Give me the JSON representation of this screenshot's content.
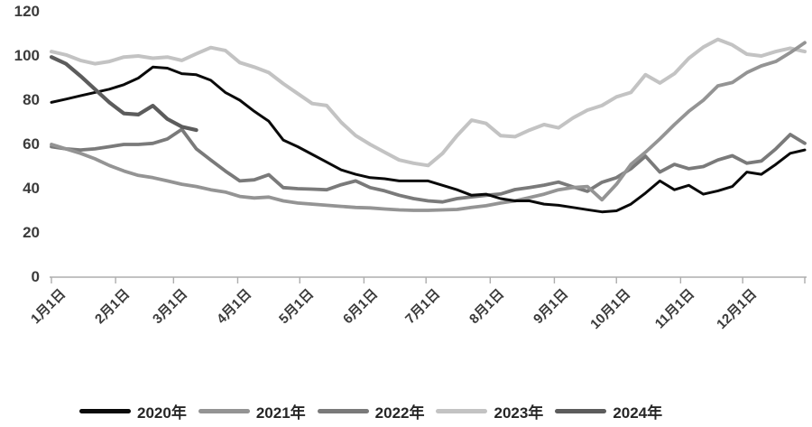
{
  "chart_data": {
    "type": "line",
    "title": "",
    "xlabel": "",
    "ylabel": "",
    "grid": false,
    "legend_position": "bottom",
    "x_axis": {
      "tick_labels": [
        "1月1日",
        "2月1日",
        "3月1日",
        "4月1日",
        "5月1日",
        "6月1日",
        "7月1日",
        "8月1日",
        "9月1日",
        "10月1日",
        "11月1日",
        "12月1日"
      ],
      "tick_days": [
        0,
        31,
        59,
        90,
        120,
        151,
        181,
        212,
        243,
        273,
        304,
        334
      ],
      "end_day": 364,
      "point_interval_days": 7
    },
    "y_axis": {
      "ticks": [
        0,
        20,
        40,
        60,
        80,
        100,
        120
      ],
      "min": 0,
      "max": 120
    },
    "series": [
      {
        "name": "2020年",
        "color": "#0a0a0a",
        "width": 3,
        "values": [
          79,
          80.5,
          82,
          83.5,
          85,
          87,
          90,
          95,
          94.5,
          92,
          91.5,
          89,
          83.5,
          80,
          75,
          70.5,
          62,
          59,
          55.5,
          52,
          48.5,
          46.5,
          45,
          44.5,
          43.5,
          43.5,
          43.5,
          41.5,
          39.5,
          37,
          37.5,
          35.5,
          34.5,
          34.5,
          33,
          32.5,
          31.5,
          30.5,
          29.5,
          30,
          33,
          38,
          43.5,
          39.5,
          41.5,
          37.5,
          39,
          41,
          47.5,
          46.5,
          51,
          56,
          57.5
        ]
      },
      {
        "name": "2021年",
        "color": "#949494",
        "width": 3.8,
        "values": [
          60,
          58,
          56,
          53.5,
          50.5,
          48,
          46,
          45,
          43.5,
          42,
          41,
          39.5,
          38.5,
          36.5,
          35.8,
          36.2,
          34.5,
          33.5,
          33,
          32.5,
          32,
          31.5,
          31.3,
          30.8,
          30.4,
          30.2,
          30.2,
          30.4,
          30.6,
          31.5,
          32.3,
          33.5,
          34.5,
          36,
          37.5,
          39.5,
          40.5,
          41,
          35,
          42,
          51,
          56.5,
          62.5,
          69,
          75,
          80,
          86.5,
          88,
          92.5,
          95.5,
          97.5,
          101.5,
          106
        ]
      },
      {
        "name": "2022年",
        "color": "#7a7a7a",
        "width": 3.8,
        "values": [
          59,
          58,
          57.5,
          58,
          59,
          60,
          60,
          60.5,
          62.5,
          66.8,
          58,
          53,
          48,
          43.5,
          44,
          46.3,
          40.5,
          40,
          39.8,
          39.5,
          41.8,
          43.5,
          40.5,
          39,
          37,
          35.5,
          34.5,
          34,
          35.5,
          36.3,
          37,
          37.6,
          39.6,
          40.5,
          41.6,
          43,
          40.8,
          38.8,
          42.9,
          45,
          49,
          54.7,
          47.5,
          51,
          49,
          50,
          53,
          54.9,
          51.5,
          52.5,
          58,
          64.5,
          60.5
        ]
      },
      {
        "name": "2023年",
        "color": "#c3c3c3",
        "width": 4,
        "values": [
          102,
          100.5,
          98,
          96.5,
          97.5,
          99.5,
          100,
          99,
          99.5,
          98,
          101,
          103.8,
          102.5,
          97,
          95,
          92.5,
          87.5,
          83,
          78.5,
          77.6,
          70,
          64,
          60,
          56.5,
          53,
          51.5,
          50.5,
          56,
          64,
          71,
          69.5,
          64,
          63.5,
          66.5,
          69,
          67.5,
          72,
          75.5,
          77.6,
          81.5,
          83.5,
          91.5,
          87.8,
          92,
          99,
          104,
          107.5,
          105,
          100.8,
          100,
          102,
          103.5,
          102
        ]
      },
      {
        "name": "2024年",
        "color": "#5c5c5c",
        "width": 4.2,
        "values": [
          99.5,
          96.5,
          91,
          85,
          79,
          74,
          73.5,
          77.5,
          71.5,
          68,
          66.5
        ]
      }
    ],
    "draw_order": [
      3,
      2,
      1,
      0,
      4
    ]
  },
  "layout_colors": {
    "axis": "#adadad",
    "tick": "#adadad",
    "label": "#3b3b3b",
    "background": "#ffffff"
  }
}
